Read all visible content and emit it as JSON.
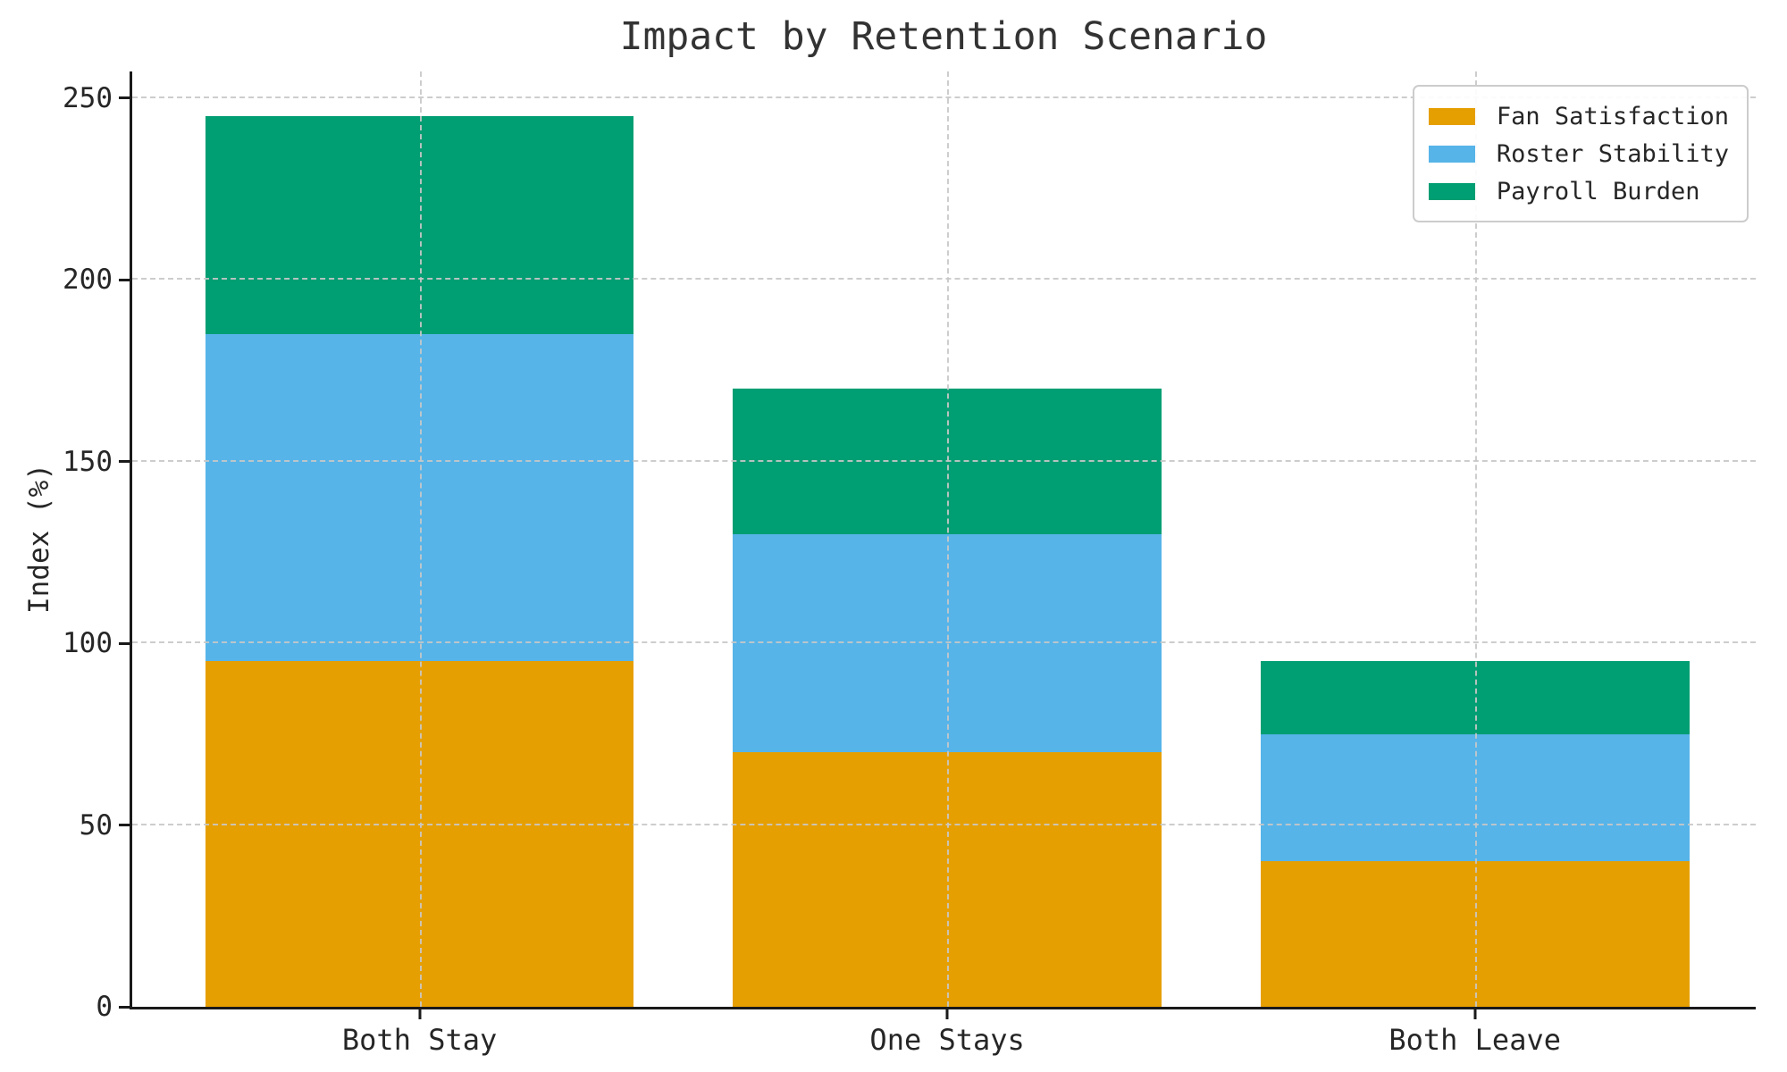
{
  "chart": {
    "title": "Impact by Retention Scenario",
    "ylabel": "Index (%)"
  },
  "chart_data": {
    "type": "bar",
    "stacked": true,
    "title": "Impact by Retention Scenario",
    "xlabel": "",
    "ylabel": "Index (%)",
    "categories": [
      "Both Stay",
      "One Stays",
      "Both Leave"
    ],
    "series": [
      {
        "name": "Fan Satisfaction",
        "color": "#E69F00",
        "values": [
          95,
          70,
          40
        ]
      },
      {
        "name": "Roster Stability",
        "color": "#56B4E9",
        "values": [
          90,
          60,
          35
        ]
      },
      {
        "name": "Payroll Burden",
        "color": "#009E73",
        "values": [
          60,
          40,
          20
        ]
      }
    ],
    "stack_totals": [
      245,
      170,
      95
    ],
    "yticks": [
      0,
      50,
      100,
      150,
      200,
      250
    ],
    "ylim": [
      0,
      257.25
    ],
    "grid": true,
    "grid_style": "dashed",
    "legend_position": "upper right"
  }
}
